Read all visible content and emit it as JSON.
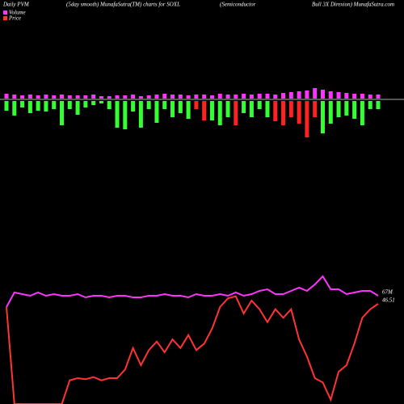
{
  "chart_data": {
    "type": "pvm",
    "title": "Daily PVM",
    "subtitle": "(5day smooth) MunafaSutra(TM) charts for SOXL",
    "description": [
      "(Semiconductor",
      "Bull 3X Direxion) MunafaSutra.com"
    ],
    "volume_bars": {
      "color": "#ff33ff",
      "values": [
        6,
        5,
        4,
        5,
        4,
        5,
        4,
        5,
        4,
        4,
        4,
        5,
        3,
        3,
        4,
        4,
        5,
        3,
        4,
        5,
        6,
        5,
        5,
        4,
        5,
        5,
        4,
        6,
        5,
        5,
        6,
        5,
        6,
        6,
        5,
        7,
        8,
        9,
        10,
        13,
        11,
        9,
        8,
        7,
        6,
        6,
        5,
        5
      ]
    },
    "pvm": {
      "up_color": "#33ff33",
      "down_color": "#ff2222",
      "values": [
        12,
        18,
        8,
        15,
        12,
        13,
        10,
        30,
        10,
        17,
        8,
        5,
        3,
        10,
        33,
        35,
        13,
        33,
        10,
        27,
        10,
        20,
        15,
        22,
        -10,
        -24,
        24,
        30,
        20,
        -30,
        15,
        20,
        10,
        20,
        -25,
        -30,
        -20,
        -28,
        -45,
        -20,
        40,
        28,
        20,
        18,
        22,
        30,
        10,
        10
      ]
    },
    "ylim": [
      0,
      60
    ],
    "y2lim": [
      0,
      80
    ],
    "series": [
      {
        "name": "Volume",
        "color": "#ff33ff",
        "axis": "y2",
        "last_label": "67M",
        "values": [
          60,
          69,
          68,
          67,
          69,
          67,
          68,
          67,
          67,
          68,
          66,
          67,
          67,
          66,
          67,
          67,
          66,
          66,
          67,
          67,
          68,
          67,
          67,
          66,
          68,
          67,
          67,
          68,
          67,
          69,
          67,
          68,
          70,
          71,
          68,
          68,
          70,
          72,
          70,
          74,
          79,
          71,
          71,
          68,
          69,
          70,
          70,
          67
        ]
      },
      {
        "name": "Price",
        "color": "#ff3333",
        "last_label": "46.51",
        "values": [
          45,
          0,
          0,
          0,
          0,
          0,
          0,
          0,
          11,
          12,
          11.5,
          12.5,
          11,
          12,
          12,
          16,
          26,
          18,
          25,
          29,
          24,
          30,
          26,
          32,
          25,
          28,
          35,
          45,
          49,
          50,
          42,
          48,
          44,
          38,
          44,
          40,
          44,
          30,
          22,
          12,
          10,
          2,
          15,
          18,
          28,
          40,
          44,
          46.51
        ]
      }
    ]
  }
}
